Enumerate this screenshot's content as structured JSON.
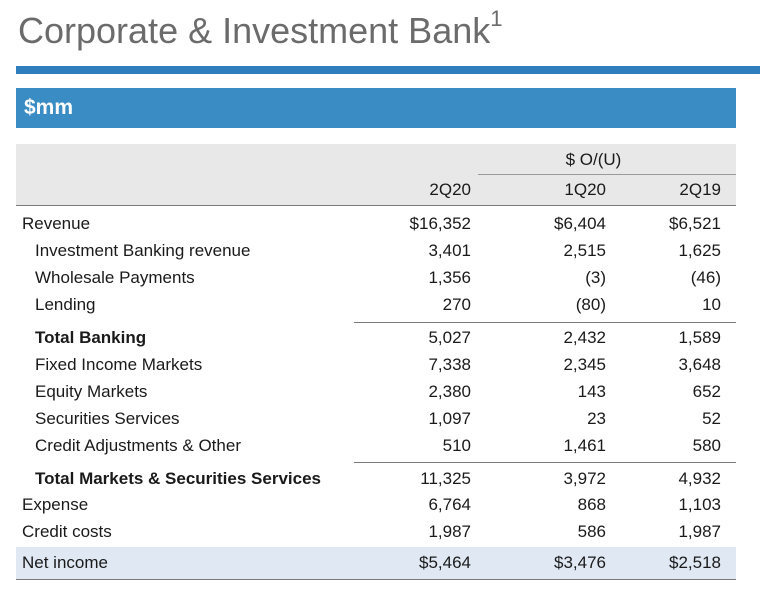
{
  "title": {
    "text": "Corporate & Investment Bank",
    "footnote": "1"
  },
  "unit_label": "$mm",
  "header": {
    "group_label": "$ O/(U)",
    "columns": [
      "2Q20",
      "1Q20",
      "2Q19"
    ]
  },
  "rows": [
    {
      "label": "Revenue",
      "values": [
        "$16,352",
        "$6,404",
        "$6,521"
      ]
    },
    {
      "label": "Investment Banking revenue",
      "values": [
        "3,401",
        "2,515",
        "1,625"
      ]
    },
    {
      "label": "Wholesale Payments",
      "values": [
        "1,356",
        "(3)",
        "(46)"
      ]
    },
    {
      "label": "Lending",
      "values": [
        "270",
        "(80)",
        "10"
      ]
    },
    {
      "label": "Total Banking",
      "values": [
        "5,027",
        "2,432",
        "1,589"
      ]
    },
    {
      "label": "Fixed Income Markets",
      "values": [
        "7,338",
        "2,345",
        "3,648"
      ]
    },
    {
      "label": "Equity Markets",
      "values": [
        "2,380",
        "143",
        "652"
      ]
    },
    {
      "label": "Securities Services",
      "values": [
        "1,097",
        "23",
        "52"
      ]
    },
    {
      "label": "Credit Adjustments & Other",
      "values": [
        "510",
        "1,461",
        "580"
      ]
    },
    {
      "label": "Total Markets & Securities Services",
      "values": [
        "11,325",
        "3,972",
        "4,932"
      ]
    },
    {
      "label": "Expense",
      "values": [
        "6,764",
        "868",
        "1,103"
      ]
    },
    {
      "label": "Credit costs",
      "values": [
        "1,987",
        "586",
        "1,987"
      ]
    },
    {
      "label": "Net income",
      "values": [
        "$5,464",
        "$3,476",
        "$2,518"
      ]
    }
  ],
  "colors": {
    "accent": "#2f7fbf",
    "unit_bar": "#3a8cc4",
    "header_band": "#e8e8e8",
    "net_income_band": "#dfe8f3",
    "title_gray": "#6b6b6b"
  }
}
